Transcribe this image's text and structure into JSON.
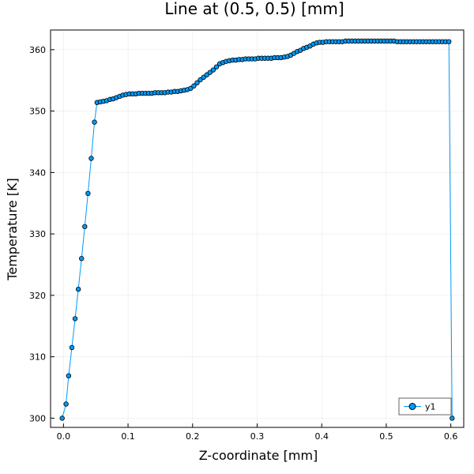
{
  "chart_data": {
    "type": "line",
    "title": "Line at (0.5, 0.5) [mm]",
    "xlabel": "Z-coordinate [mm]",
    "ylabel": "Temperature [K]",
    "xlim": [
      -0.02,
      0.62
    ],
    "ylim": [
      298.5,
      363.2
    ],
    "xticks": [
      0.0,
      0.1,
      0.2,
      0.3,
      0.4,
      0.5,
      0.6
    ],
    "xtick_labels": [
      "0.0",
      "0.1",
      "0.2",
      "0.3",
      "0.4",
      "0.5",
      "0.6"
    ],
    "yticks": [
      300,
      310,
      320,
      330,
      340,
      350,
      360
    ],
    "ytick_labels": [
      "300",
      "310",
      "320",
      "330",
      "340",
      "350",
      "360"
    ],
    "grid": true,
    "legend_position": "bottom-right",
    "line_color": "#009AFA",
    "marker_color": "#009AFA",
    "series": [
      {
        "name": "y1",
        "x": [
          -0.002,
          0.004,
          0.008,
          0.013,
          0.018,
          0.023,
          0.028,
          0.033,
          0.038,
          0.043,
          0.048,
          0.052,
          0.057,
          0.062,
          0.067,
          0.072,
          0.077,
          0.082,
          0.087,
          0.092,
          0.097,
          0.102,
          0.107,
          0.112,
          0.117,
          0.122,
          0.127,
          0.132,
          0.137,
          0.142,
          0.147,
          0.152,
          0.157,
          0.162,
          0.167,
          0.172,
          0.177,
          0.182,
          0.187,
          0.192,
          0.197,
          0.202,
          0.207,
          0.212,
          0.217,
          0.222,
          0.227,
          0.232,
          0.237,
          0.242,
          0.247,
          0.252,
          0.257,
          0.262,
          0.267,
          0.272,
          0.277,
          0.282,
          0.287,
          0.292,
          0.297,
          0.302,
          0.307,
          0.312,
          0.317,
          0.322,
          0.327,
          0.332,
          0.337,
          0.342,
          0.347,
          0.352,
          0.357,
          0.362,
          0.367,
          0.372,
          0.377,
          0.382,
          0.387,
          0.392,
          0.397,
          0.402,
          0.407,
          0.412,
          0.417,
          0.422,
          0.427,
          0.432,
          0.437,
          0.442,
          0.447,
          0.452,
          0.457,
          0.462,
          0.467,
          0.472,
          0.477,
          0.482,
          0.487,
          0.492,
          0.497,
          0.502,
          0.507,
          0.512,
          0.517,
          0.522,
          0.527,
          0.532,
          0.537,
          0.542,
          0.547,
          0.552,
          0.557,
          0.562,
          0.567,
          0.572,
          0.577,
          0.582,
          0.587,
          0.592,
          0.597,
          0.602
        ],
        "y": [
          300.0,
          302.3,
          306.9,
          311.5,
          316.2,
          321.0,
          326.0,
          331.2,
          336.6,
          342.3,
          348.2,
          351.4,
          351.5,
          351.6,
          351.7,
          351.9,
          352.0,
          352.2,
          352.4,
          352.6,
          352.7,
          352.8,
          352.8,
          352.8,
          352.9,
          352.9,
          352.9,
          352.9,
          352.9,
          353.0,
          353.0,
          353.0,
          353.0,
          353.1,
          353.1,
          353.2,
          353.2,
          353.3,
          353.4,
          353.5,
          353.7,
          354.1,
          354.6,
          355.1,
          355.5,
          355.9,
          356.3,
          356.7,
          357.2,
          357.7,
          357.9,
          358.1,
          358.2,
          358.3,
          358.3,
          358.4,
          358.4,
          358.5,
          358.5,
          358.5,
          358.5,
          358.6,
          358.6,
          358.6,
          358.6,
          358.6,
          358.7,
          358.7,
          358.7,
          358.8,
          358.9,
          359.1,
          359.4,
          359.7,
          359.9,
          360.2,
          360.4,
          360.6,
          360.9,
          361.1,
          361.2,
          361.2,
          361.3,
          361.3,
          361.3,
          361.3,
          361.3,
          361.3,
          361.4,
          361.4,
          361.4,
          361.4,
          361.4,
          361.4,
          361.4,
          361.4,
          361.4,
          361.4,
          361.4,
          361.4,
          361.4,
          361.4,
          361.4,
          361.4,
          361.3,
          361.3,
          361.3,
          361.3,
          361.3,
          361.3,
          361.3,
          361.3,
          361.3,
          361.3,
          361.3,
          361.3,
          361.3,
          361.3,
          361.3,
          361.3,
          361.3,
          300.0
        ]
      }
    ]
  }
}
